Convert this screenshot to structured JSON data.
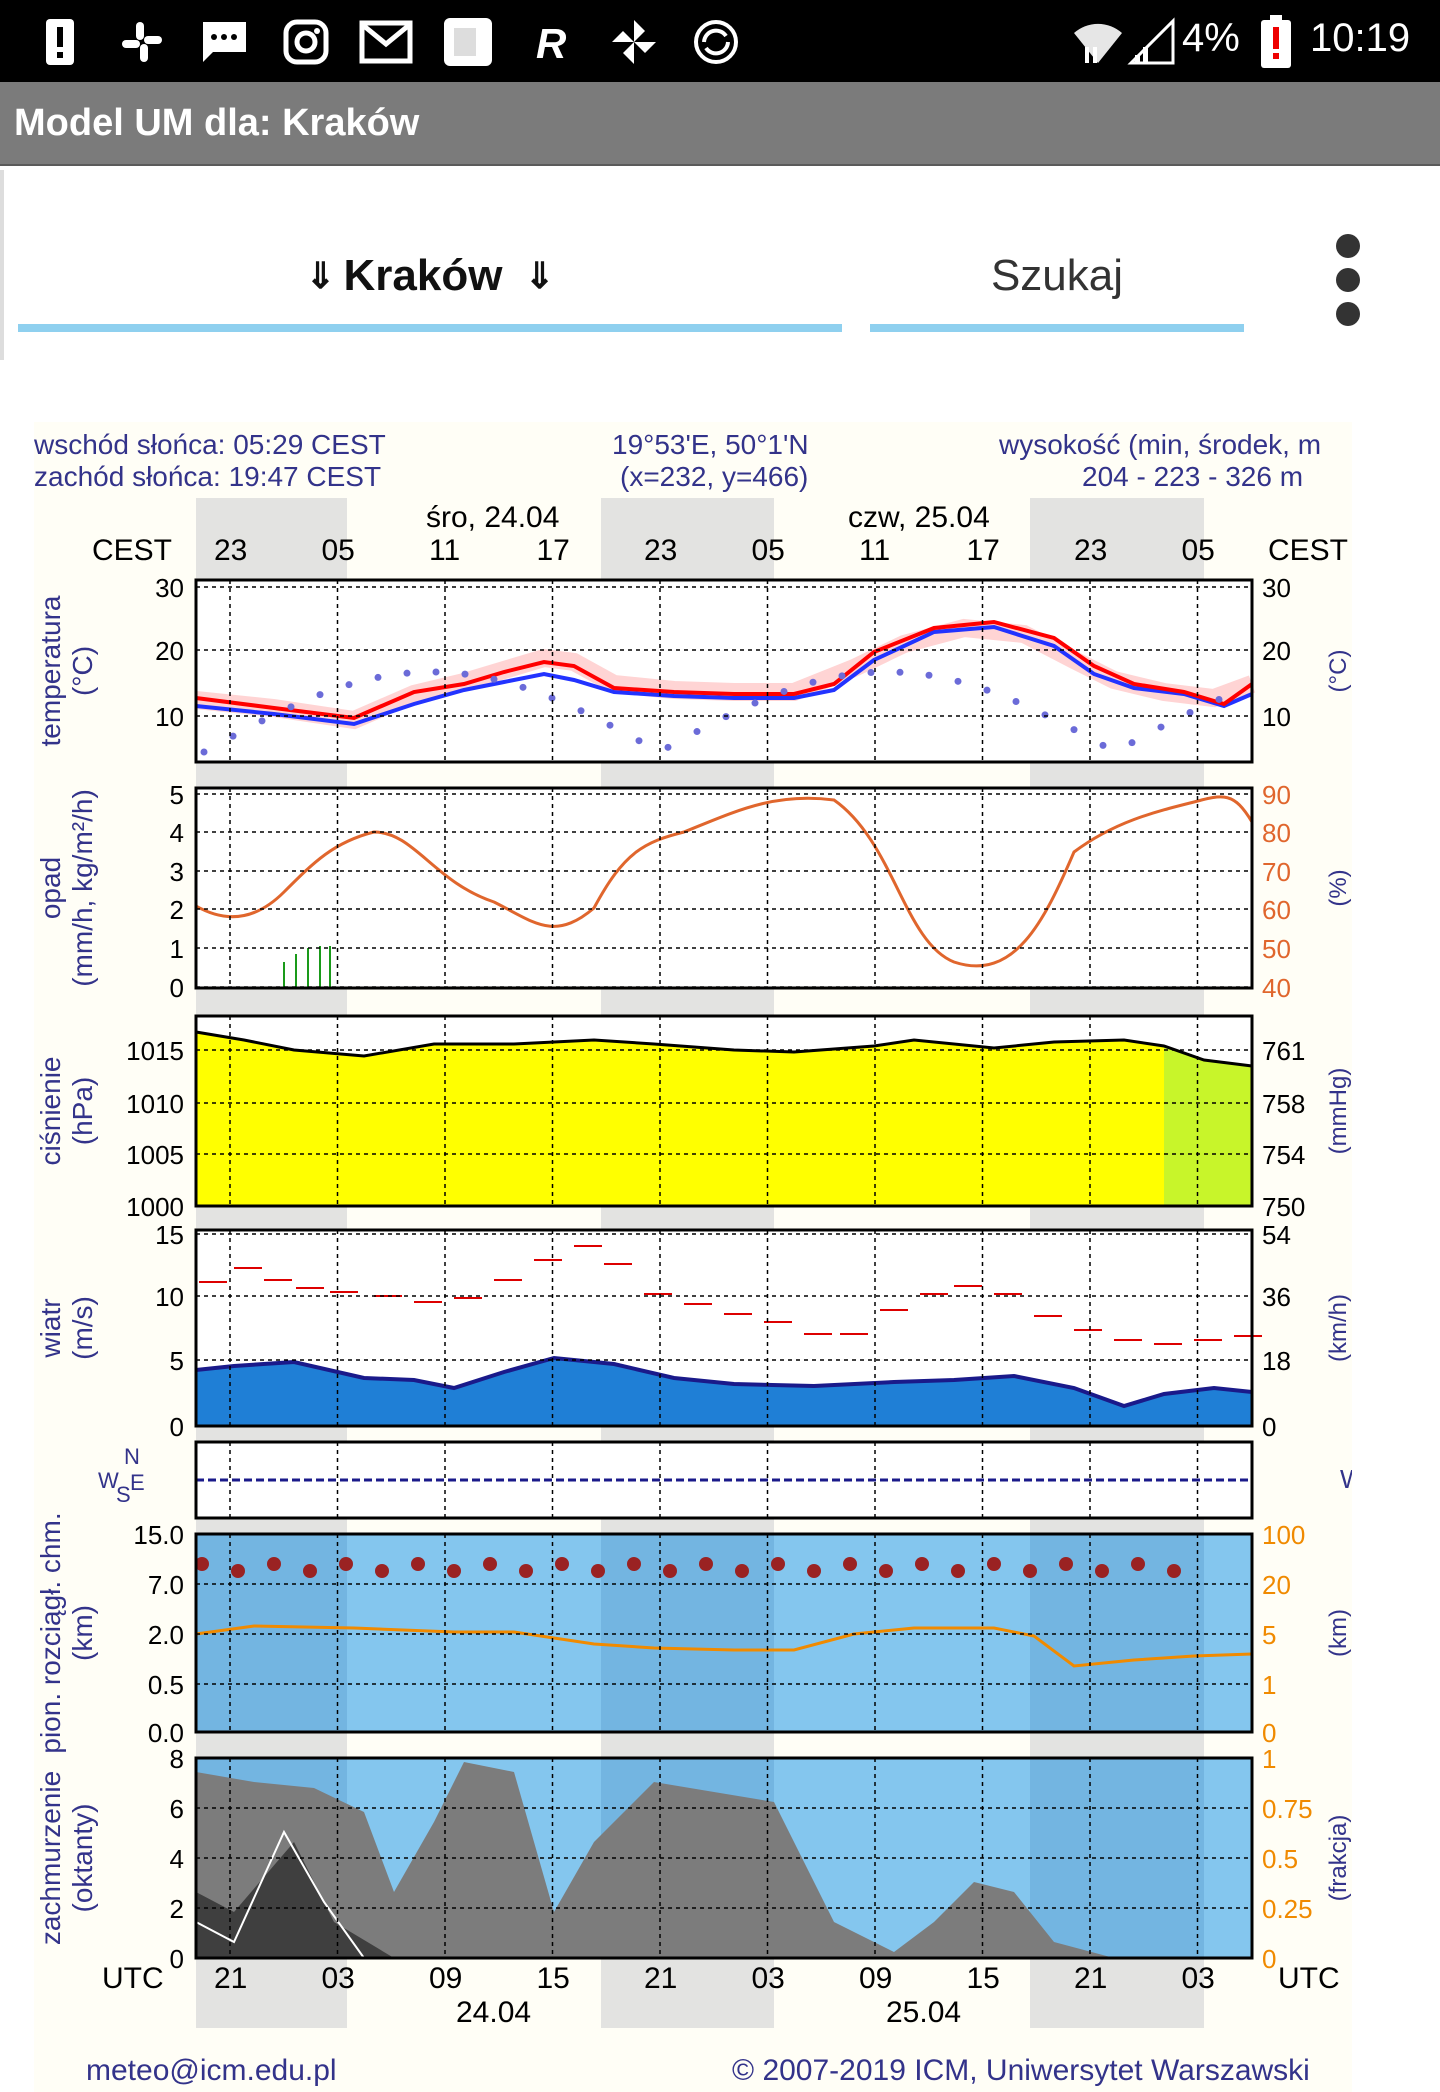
{
  "status_bar": {
    "battery_pct": "4%",
    "time": "10:19",
    "icons": [
      "alert-icon",
      "slack-icon",
      "message-icon",
      "instagram-icon",
      "gmail-icon",
      "app-icon",
      "r-icon",
      "pinwheel-icon",
      "sync-icon",
      "wifi-icon",
      "signal-icon",
      "battery-alert-icon"
    ]
  },
  "app_bar": {
    "title": "Model UM dla: Kraków"
  },
  "tabs": {
    "city": {
      "label": "Kraków",
      "prefix_arrow": "⇓",
      "suffix_arrow": "⇓"
    },
    "search": {
      "label": "Szukaj"
    }
  },
  "overflow_menu_icon": "more-vert-icon",
  "meteogram": {
    "sunrise": "wschód słońca: 05:29 CEST",
    "sunset": "zachód słońca: 19:47 CEST",
    "coords": "19°53'E, 50°1'N",
    "grid": "(x=232,  y=466)",
    "altitude_label": "wysokość (min, środek, m",
    "altitude_values": "204 - 223 - 326 m",
    "day1": "śro, 24.04",
    "day2": "czw, 25.04",
    "tz_left": "CEST",
    "tz_right": "CEST",
    "cest_hours": [
      "23",
      "05",
      "11",
      "17",
      "23",
      "05",
      "11",
      "17",
      "23",
      "05"
    ],
    "utc_left": "UTC",
    "utc_right": "UTC",
    "utc_hours": [
      "21",
      "03",
      "09",
      "15",
      "21",
      "03",
      "09",
      "15",
      "21",
      "03"
    ],
    "bottom_date1": "24.04",
    "bottom_date2": "25.04",
    "contact": "meteo@icm.edu.pl",
    "copyright": "© 2007-2019 ICM, Uniwersytet Warszawski",
    "panels": {
      "temperature": {
        "label_line1": "temperatura",
        "label_line2": "(°C)",
        "y_left": [
          "30",
          "20",
          "10"
        ],
        "y_right": [
          "30",
          "20",
          "10"
        ],
        "right_unit": "(°C)"
      },
      "precip": {
        "label_line1": "opad",
        "label_line2": "(mm/h, kg/m²/h)",
        "y_left": [
          "5",
          "4",
          "3",
          "2",
          "1",
          "0"
        ],
        "y_right": [
          "90",
          "80",
          "70",
          "60",
          "50",
          "40"
        ],
        "right_unit": "(%)"
      },
      "pressure": {
        "label_line1": "ciśnienie",
        "label_line2": "(hPa)",
        "y_left": [
          "1015",
          "1010",
          "1005",
          "1000"
        ],
        "y_right": [
          "761",
          "758",
          "754",
          "750"
        ],
        "right_unit": "(mmHg)"
      },
      "wind": {
        "label_line1": "wiatr",
        "label_line2": "(m/s)",
        "y_left": [
          "15",
          "10",
          "5",
          "0"
        ],
        "y_right": [
          "54",
          "36",
          "18",
          "0"
        ],
        "right_unit": "(km/h)"
      },
      "wind_dir": {
        "compass_n": "N",
        "compass_e": "E",
        "compass_s": "S",
        "compass_w": "W",
        "right_label": "W"
      },
      "cloud_height": {
        "label_line1": "pion. rozciągł. chm.",
        "label_line2": "(km)",
        "y_left": [
          "15.0",
          "7.0",
          "2.0",
          "0.5",
          "0.0"
        ],
        "y_right": [
          "100",
          "20",
          "5",
          "1",
          "0"
        ],
        "right_unit": "(km)"
      },
      "cloud_cover": {
        "label_line1": "zachmurzenie",
        "label_line2": "(oktanty)",
        "y_left": [
          "8",
          "6",
          "4",
          "2",
          "0"
        ],
        "y_right": [
          "1",
          "0.75",
          "0.5",
          "0.25",
          "0"
        ],
        "right_unit": "(frakcja)"
      }
    }
  },
  "colors": {
    "status_bg": "#000000",
    "appbar_bg": "#7b7b7b",
    "tab_underline": "#8fd0ef",
    "pressure_fill": "#ffff00",
    "precip_line": "#e0662d",
    "temp_line": "#ff0000",
    "dew_line": "#2233ff",
    "axis_blue": "#33338a"
  }
}
